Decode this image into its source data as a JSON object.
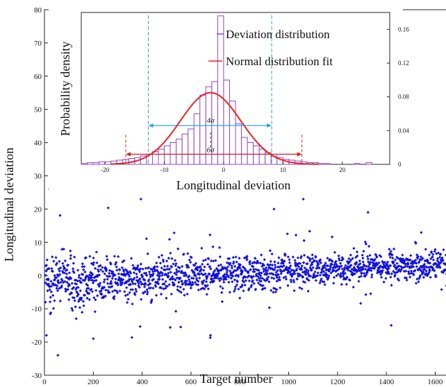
{
  "chart_data": [
    {
      "type": "scatter",
      "xlabel": "Target number",
      "ylabel": "Longitudinal deviation",
      "xlim": [
        0,
        1650
      ],
      "ylim": [
        -30,
        80
      ],
      "xticks": [
        0,
        200,
        400,
        600,
        800,
        1000,
        1200,
        1400,
        1600
      ],
      "yticks": [
        -30,
        -20,
        -10,
        0,
        10,
        20,
        30,
        40,
        50,
        60,
        70,
        80
      ],
      "marker_color": "#1010e0",
      "n_points": 1650,
      "trend": {
        "start_mean": -2,
        "end_mean": 3.5,
        "start_spread": 8,
        "end_spread": 3
      },
      "notable_points": [
        {
          "x": 20,
          "y": 26
        },
        {
          "x": 45,
          "y": 28
        },
        {
          "x": 55,
          "y": -24
        },
        {
          "x": 140,
          "y": 26
        },
        {
          "x": 290,
          "y": 27
        },
        {
          "x": 395,
          "y": 23
        },
        {
          "x": 680,
          "y": -18
        },
        {
          "x": 940,
          "y": 20
        },
        {
          "x": 1060,
          "y": 23
        },
        {
          "x": 1325,
          "y": 19
        },
        {
          "x": 1420,
          "y": -15
        },
        {
          "x": 8,
          "y": -18
        },
        {
          "x": 200,
          "y": -19
        }
      ],
      "grid": false,
      "legend": "none"
    },
    {
      "type": "bar",
      "subtype": "histogram-with-fit",
      "xlabel": "Longitudinal deviation",
      "ylabel": "Probability density",
      "xlim": [
        -24,
        28
      ],
      "ylim": [
        0,
        0.18
      ],
      "xticks": [
        -20,
        -10,
        0,
        10,
        20
      ],
      "yticks": [
        0,
        0.04,
        0.08,
        0.12,
        0.16
      ],
      "ytick_labels": [
        "0",
        "0.04",
        "0.08",
        "0.12",
        "0.16"
      ],
      "bin_width": 1,
      "bins": [
        {
          "x": -24,
          "d": 0.001
        },
        {
          "x": -23,
          "d": 0.002
        },
        {
          "x": -22,
          "d": 0.002
        },
        {
          "x": -21,
          "d": 0.003
        },
        {
          "x": -20,
          "d": 0.003
        },
        {
          "x": -19,
          "d": 0.004
        },
        {
          "x": -18,
          "d": 0.005
        },
        {
          "x": -17,
          "d": 0.006
        },
        {
          "x": -16,
          "d": 0.007
        },
        {
          "x": -15,
          "d": 0.008
        },
        {
          "x": -14,
          "d": 0.01
        },
        {
          "x": -13,
          "d": 0.012
        },
        {
          "x": -12,
          "d": 0.015
        },
        {
          "x": -11,
          "d": 0.018
        },
        {
          "x": -10,
          "d": 0.022
        },
        {
          "x": -9,
          "d": 0.026
        },
        {
          "x": -8,
          "d": 0.03
        },
        {
          "x": -7,
          "d": 0.036
        },
        {
          "x": -6,
          "d": 0.042
        },
        {
          "x": -5,
          "d": 0.06
        },
        {
          "x": -4,
          "d": 0.082
        },
        {
          "x": -3,
          "d": 0.092
        },
        {
          "x": -2,
          "d": 0.098
        },
        {
          "x": -1,
          "d": 0.176
        },
        {
          "x": 0,
          "d": 0.1
        },
        {
          "x": 1,
          "d": 0.075
        },
        {
          "x": 2,
          "d": 0.048
        },
        {
          "x": 3,
          "d": 0.032
        },
        {
          "x": 4,
          "d": 0.026
        },
        {
          "x": 5,
          "d": 0.022
        },
        {
          "x": 6,
          "d": 0.018
        },
        {
          "x": 7,
          "d": 0.014
        },
        {
          "x": 8,
          "d": 0.01
        },
        {
          "x": 9,
          "d": 0.008
        },
        {
          "x": 10,
          "d": 0.006
        },
        {
          "x": 11,
          "d": 0.005
        },
        {
          "x": 12,
          "d": 0.004
        },
        {
          "x": 13,
          "d": 0.003
        },
        {
          "x": 14,
          "d": 0.002
        },
        {
          "x": 15,
          "d": 0.002
        },
        {
          "x": 16,
          "d": 0.001
        },
        {
          "x": 17,
          "d": 0.001
        },
        {
          "x": 22,
          "d": 0.001
        },
        {
          "x": 24,
          "d": 0.002
        }
      ],
      "fit": {
        "mean": -2.2,
        "sigma": 5.1,
        "peak": 0.085
      },
      "lines": {
        "four_sigma": [
          -12.7,
          8.1
        ],
        "six_sigma": [
          -16.5,
          13.2
        ]
      },
      "annotations": {
        "four_sigma_label": "4σ",
        "six_sigma_label": "6σ"
      },
      "series": [
        {
          "name": "Deviation distribution",
          "color": "#8b44c8"
        },
        {
          "name": "Normal distribution fit",
          "color": "#e8201c"
        }
      ],
      "colors": {
        "four_sigma": "#2ea0e8",
        "six_sigma": "#d81e1e"
      },
      "legend": "top-right",
      "grid": false
    }
  ]
}
